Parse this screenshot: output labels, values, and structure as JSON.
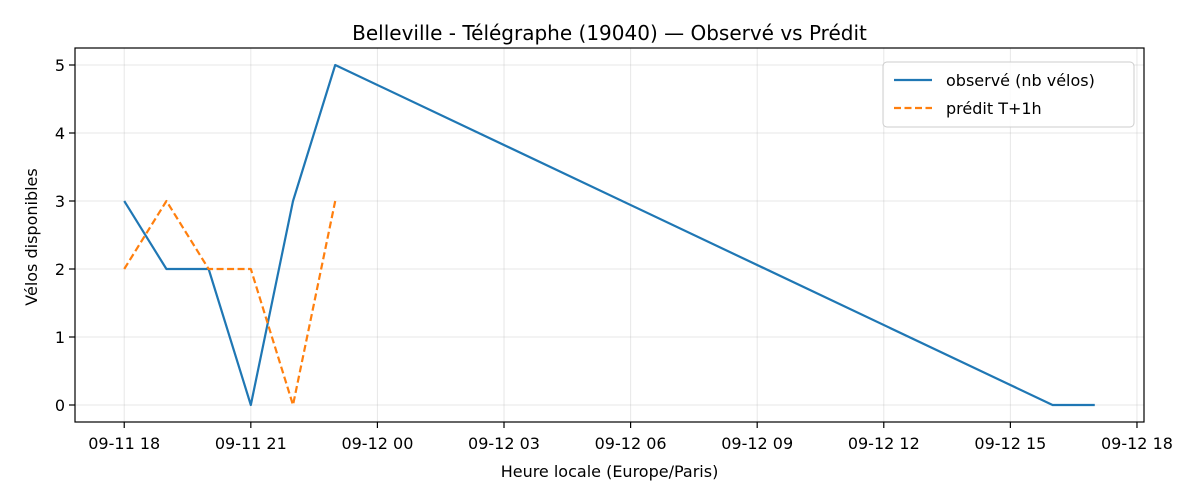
{
  "chart_data": {
    "type": "line",
    "title": "Belleville - Télégraphe (19040) — Observé vs Prédit",
    "xlabel": "Heure locale (Europe/Paris)",
    "ylabel": "Vélos disponibles",
    "x_tick_labels": [
      "09-11 18",
      "09-11 21",
      "09-12 00",
      "09-12 03",
      "09-12 06",
      "09-12 09",
      "09-12 12",
      "09-12 15",
      "09-12 18"
    ],
    "x_ticks": [
      "2025-09-11 18:00",
      "2025-09-11 21:00",
      "2025-09-12 00:00",
      "2025-09-12 03:00",
      "2025-09-12 06:00",
      "2025-09-12 09:00",
      "2025-09-12 12:00",
      "2025-09-12 15:00",
      "2025-09-12 18:00"
    ],
    "xlim": [
      "2025-09-11 16:50",
      "2025-09-12 18:10"
    ],
    "ylim": [
      -0.25,
      5.25
    ],
    "y_ticks": [
      0,
      1,
      2,
      3,
      4,
      5
    ],
    "grid": true,
    "legend_position": "top-right",
    "series": [
      {
        "name": "observé (nb vélos)",
        "color": "#1f77b4",
        "style": "solid",
        "x": [
          "2025-09-11 18:00",
          "2025-09-11 19:00",
          "2025-09-11 20:00",
          "2025-09-11 21:00",
          "2025-09-11 22:00",
          "2025-09-11 23:00",
          "2025-09-12 16:00",
          "2025-09-12 17:00"
        ],
        "y": [
          3,
          2,
          2,
          0,
          3,
          5,
          0,
          0
        ]
      },
      {
        "name": "prédit T+1h",
        "color": "#ff7f0e",
        "style": "dashed",
        "x": [
          "2025-09-11 18:00",
          "2025-09-11 19:00",
          "2025-09-11 20:00",
          "2025-09-11 21:00",
          "2025-09-11 22:00",
          "2025-09-11 23:00"
        ],
        "y": [
          2,
          3,
          2,
          2,
          0,
          3
        ]
      }
    ]
  }
}
